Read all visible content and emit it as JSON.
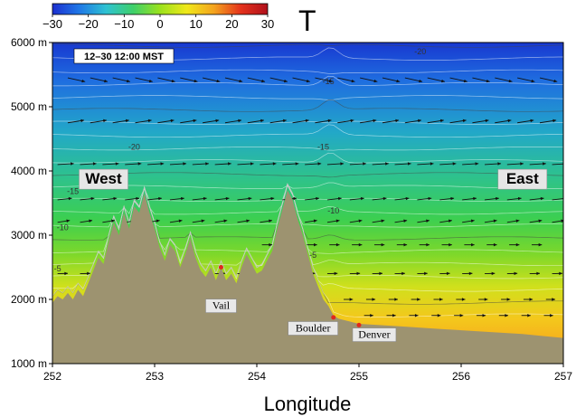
{
  "chart_data": {
    "type": "heatmap",
    "title": "T",
    "xlabel": "Longitude",
    "ylabel": "",
    "xlim": [
      252,
      257
    ],
    "ylim": [
      1000,
      6000
    ],
    "x_ticks": [
      {
        "value": 252,
        "label": "252"
      },
      {
        "value": 253,
        "label": "253"
      },
      {
        "value": 254,
        "label": "254"
      },
      {
        "value": 255,
        "label": "255"
      },
      {
        "value": 256,
        "label": "256"
      },
      {
        "value": 257,
        "label": "257"
      }
    ],
    "y_ticks": [
      {
        "value": 1000,
        "label": "1000 m"
      },
      {
        "value": 2000,
        "label": "2000 m"
      },
      {
        "value": 3000,
        "label": "3000 m"
      },
      {
        "value": 4000,
        "label": "4000 m"
      },
      {
        "value": 5000,
        "label": "5000 m"
      },
      {
        "value": 6000,
        "label": "6000 m"
      }
    ],
    "colorbar": {
      "range": [
        -30,
        30
      ],
      "ticks": [
        {
          "value": -30,
          "label": "−30"
        },
        {
          "value": -20,
          "label": "−20"
        },
        {
          "value": -10,
          "label": "−10"
        },
        {
          "value": 0,
          "label": "0"
        },
        {
          "value": 10,
          "label": "10"
        },
        {
          "value": 20,
          "label": "20"
        },
        {
          "value": 30,
          "label": "30"
        }
      ],
      "colors": [
        "#1c2fd0",
        "#1f78e6",
        "#2ec2d2",
        "#3ed06a",
        "#9be21c",
        "#f0e81a",
        "#f4a41e",
        "#e4321c",
        "#b0101c"
      ]
    },
    "timestamp": "12–30 12:00 MST",
    "region_labels": [
      {
        "text": "West",
        "lon": 252.5,
        "elev": 3800
      },
      {
        "text": "East",
        "lon": 256.6,
        "elev": 3800
      }
    ],
    "cities": [
      {
        "name": "Vail",
        "lon": 253.65,
        "elev": 2500,
        "label_lon": 253.65,
        "label_elev": 1850
      },
      {
        "name": "Boulder",
        "lon": 254.75,
        "elev": 1720,
        "label_lon": 254.55,
        "label_elev": 1500
      },
      {
        "name": "Denver",
        "lon": 255.0,
        "elev": 1600,
        "label_lon": 255.15,
        "label_elev": 1400
      }
    ],
    "contour_labels": [
      {
        "text": "-20",
        "lon": 255.6,
        "elev": 5820
      },
      {
        "text": "-20",
        "lon": 252.8,
        "elev": 4330
      },
      {
        "text": "-15",
        "lon": 254.7,
        "elev": 5350
      },
      {
        "text": "-15",
        "lon": 254.65,
        "elev": 4330
      },
      {
        "text": "-10",
        "lon": 254.75,
        "elev": 3340
      },
      {
        "text": "-5",
        "lon": 254.55,
        "elev": 2650
      },
      {
        "text": "-15",
        "lon": 252.2,
        "elev": 3640
      },
      {
        "text": "-10",
        "lon": 252.1,
        "elev": 3080
      },
      {
        "text": "-5",
        "lon": 252.05,
        "elev": 2440
      }
    ],
    "terrain_profile": {
      "color": "#9d9370",
      "points": [
        [
          252.0,
          1950
        ],
        [
          252.05,
          2050
        ],
        [
          252.1,
          2000
        ],
        [
          252.15,
          2100
        ],
        [
          252.2,
          2000
        ],
        [
          252.25,
          2150
        ],
        [
          252.3,
          2050
        ],
        [
          252.35,
          2250
        ],
        [
          252.4,
          2450
        ],
        [
          252.45,
          2650
        ],
        [
          252.5,
          2550
        ],
        [
          252.55,
          2900
        ],
        [
          252.6,
          3200
        ],
        [
          252.65,
          3000
        ],
        [
          252.7,
          3350
        ],
        [
          252.75,
          3100
        ],
        [
          252.8,
          3450
        ],
        [
          252.85,
          3350
        ],
        [
          252.9,
          3650
        ],
        [
          252.95,
          3350
        ],
        [
          253.0,
          3100
        ],
        [
          253.05,
          2800
        ],
        [
          253.1,
          2600
        ],
        [
          253.15,
          2850
        ],
        [
          253.2,
          2750
        ],
        [
          253.25,
          2500
        ],
        [
          253.3,
          2700
        ],
        [
          253.35,
          2950
        ],
        [
          253.4,
          2650
        ],
        [
          253.45,
          2450
        ],
        [
          253.5,
          2350
        ],
        [
          253.55,
          2500
        ],
        [
          253.6,
          2300
        ],
        [
          253.65,
          2500
        ],
        [
          253.7,
          2300
        ],
        [
          253.75,
          2400
        ],
        [
          253.8,
          2250
        ],
        [
          253.85,
          2500
        ],
        [
          253.9,
          2700
        ],
        [
          253.95,
          2550
        ],
        [
          254.0,
          2400
        ],
        [
          254.05,
          2450
        ],
        [
          254.1,
          2600
        ],
        [
          254.15,
          2750
        ],
        [
          254.2,
          3100
        ],
        [
          254.25,
          3400
        ],
        [
          254.3,
          3700
        ],
        [
          254.35,
          3550
        ],
        [
          254.4,
          3250
        ],
        [
          254.45,
          3000
        ],
        [
          254.5,
          2700
        ],
        [
          254.55,
          2400
        ],
        [
          254.6,
          2200
        ],
        [
          254.65,
          2000
        ],
        [
          254.7,
          1900
        ],
        [
          254.75,
          1750
        ],
        [
          254.8,
          1700
        ],
        [
          254.85,
          1680
        ],
        [
          254.9,
          1660
        ],
        [
          254.95,
          1640
        ],
        [
          255.0,
          1620
        ],
        [
          255.2,
          1600
        ],
        [
          255.4,
          1580
        ],
        [
          255.6,
          1560
        ],
        [
          255.8,
          1540
        ],
        [
          256.0,
          1520
        ],
        [
          256.2,
          1500
        ],
        [
          256.4,
          1480
        ],
        [
          256.6,
          1460
        ],
        [
          256.8,
          1430
        ],
        [
          257.0,
          1400
        ]
      ]
    },
    "wind_rows": [
      {
        "elev": 5450,
        "start": 252.15,
        "end": 256.9,
        "dx": 0.17,
        "dy": -60
      },
      {
        "elev": 4750,
        "start": 252.15,
        "end": 256.9,
        "dx": 0.16,
        "dy": 40
      },
      {
        "elev": 4100,
        "start": 252.05,
        "end": 256.9,
        "dx": 0.16,
        "dy": 15
      },
      {
        "elev": 3550,
        "start": 252.05,
        "end": 256.9,
        "dx": 0.14,
        "dy": 25
      },
      {
        "elev": 3200,
        "start": 252.05,
        "end": 256.9,
        "dx": 0.12,
        "dy": 30
      },
      {
        "elev": 2850,
        "start": 254.05,
        "end": 256.9,
        "dx": 0.1,
        "dy": 0
      },
      {
        "elev": 2400,
        "start": 252.05,
        "end": 256.9,
        "dx": 0.1,
        "dy": 5
      },
      {
        "elev": 2000,
        "start": 254.85,
        "end": 256.9,
        "dx": 0.09,
        "dy": 0
      },
      {
        "elev": 1750,
        "start": 255.05,
        "end": 256.9,
        "dx": 0.09,
        "dy": 0
      }
    ]
  }
}
